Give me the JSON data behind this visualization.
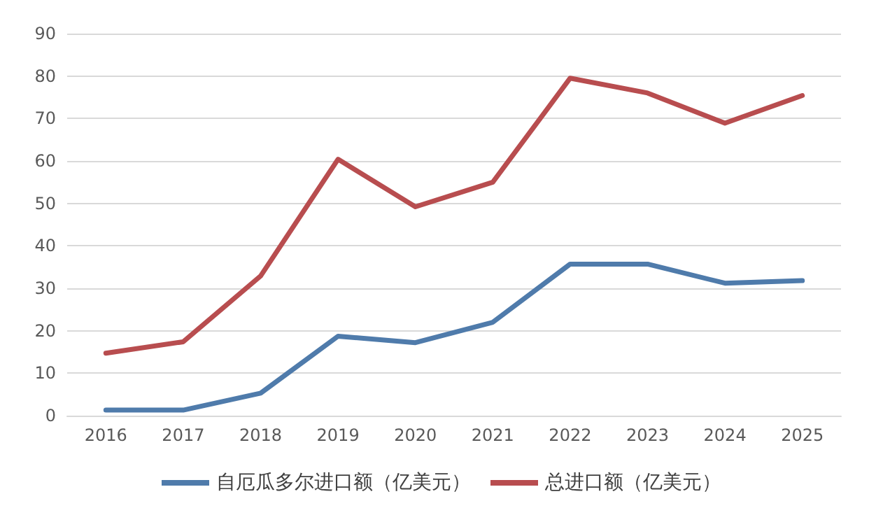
{
  "chart_data": {
    "type": "line",
    "categories": [
      "2016",
      "2017",
      "2018",
      "2019",
      "2020",
      "2021",
      "2022",
      "2023",
      "2024",
      "2025"
    ],
    "series": [
      {
        "name": "自厄瓜多尔进口额（亿美元）",
        "color": "#4f7bab",
        "values": [
          1.3,
          1.3,
          5.3,
          18.7,
          17.2,
          22,
          35.7,
          35.7,
          31.2,
          31.8
        ]
      },
      {
        "name": "总进口额（亿美元）",
        "color": "#b84d4f",
        "values": [
          14.7,
          17.4,
          32.9,
          60.4,
          49.2,
          55,
          79.5,
          76,
          68.9,
          75.4
        ]
      }
    ],
    "ylim": [
      0,
      90
    ],
    "yticks": [
      0,
      10,
      20,
      30,
      40,
      50,
      60,
      70,
      80,
      90
    ],
    "grid": "y",
    "legend": "bottom",
    "marker": "none",
    "line_style": "solid"
  }
}
